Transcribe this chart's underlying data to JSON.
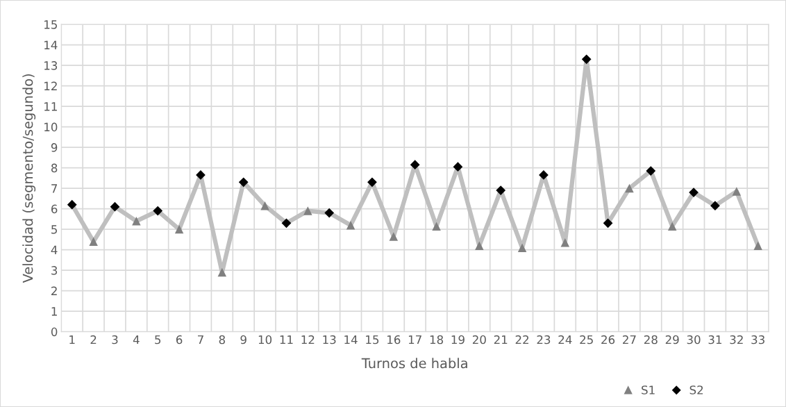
{
  "chart_data": {
    "type": "line",
    "xlabel": "Turnos de habla",
    "ylabel": "Velocidad (segmento/segundo)",
    "categories": [
      "1",
      "2",
      "3",
      "4",
      "5",
      "6",
      "7",
      "8",
      "9",
      "10",
      "11",
      "12",
      "13",
      "14",
      "15",
      "16",
      "17",
      "18",
      "19",
      "20",
      "21",
      "22",
      "23",
      "24",
      "25",
      "26",
      "27",
      "28",
      "29",
      "30",
      "31",
      "32",
      "33"
    ],
    "series": [
      {
        "color": "#bfbfbf",
        "marker": "none",
        "values": [
          6.2,
          4.4,
          6.1,
          5.4,
          5.9,
          5.0,
          7.65,
          2.9,
          7.3,
          6.15,
          5.3,
          5.9,
          5.8,
          5.2,
          7.3,
          4.65,
          8.15,
          5.15,
          8.05,
          4.2,
          6.9,
          4.1,
          7.65,
          4.35,
          13.3,
          5.3,
          7.0,
          7.85,
          5.15,
          6.8,
          6.15,
          6.85,
          4.2
        ]
      },
      {
        "type": "scatter",
        "name": "S1",
        "color": "#808080",
        "marker": "triangle",
        "x": [
          "2",
          "4",
          "6",
          "8",
          "10",
          "12",
          "14",
          "16",
          "18",
          "20",
          "22",
          "24",
          "27",
          "29",
          "32",
          "33"
        ],
        "values": [
          4.4,
          5.4,
          5.0,
          2.9,
          6.15,
          5.9,
          5.2,
          4.65,
          5.15,
          4.2,
          4.1,
          4.35,
          7.0,
          5.15,
          6.85,
          4.2
        ]
      },
      {
        "type": "scatter",
        "name": "S2",
        "color": "#000000",
        "marker": "diamond",
        "x": [
          "1",
          "3",
          "5",
          "7",
          "9",
          "11",
          "13",
          "15",
          "17",
          "19",
          "21",
          "23",
          "25",
          "26",
          "28",
          "30",
          "31"
        ],
        "values": [
          6.2,
          6.1,
          5.9,
          7.65,
          7.3,
          5.3,
          5.8,
          7.3,
          8.15,
          8.05,
          6.9,
          7.65,
          13.3,
          5.3,
          7.85,
          6.8,
          6.15
        ]
      }
    ],
    "ylim": [
      0,
      15
    ],
    "yticks": [
      0,
      1,
      2,
      3,
      4,
      5,
      6,
      7,
      8,
      9,
      10,
      11,
      12,
      13,
      14,
      15
    ],
    "grid": true,
    "legend": "bottom right"
  }
}
